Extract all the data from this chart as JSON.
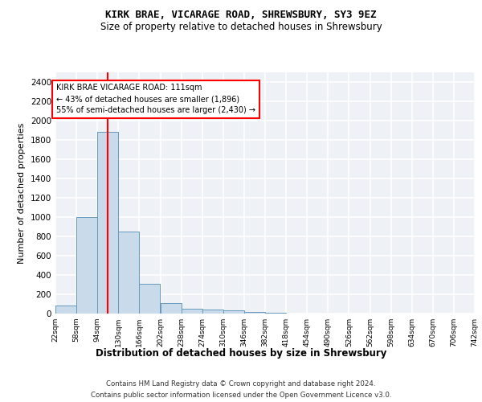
{
  "title": "KIRK BRAE, VICARAGE ROAD, SHREWSBURY, SY3 9EZ",
  "subtitle": "Size of property relative to detached houses in Shrewsbury",
  "xlabel": "Distribution of detached houses by size in Shrewsbury",
  "ylabel": "Number of detached properties",
  "bin_edges": [
    22,
    58,
    94,
    130,
    166,
    202,
    238,
    274,
    310,
    346,
    382,
    418,
    454,
    490,
    526,
    562,
    598,
    634,
    670,
    706,
    742
  ],
  "bar_heights": [
    80,
    1000,
    1880,
    850,
    310,
    110,
    50,
    40,
    30,
    15,
    10,
    0,
    0,
    0,
    0,
    0,
    0,
    0,
    0,
    0
  ],
  "bar_color": "#c9daea",
  "bar_edge_color": "#6699bb",
  "red_line_x": 111,
  "ylim": [
    0,
    2500
  ],
  "yticks": [
    0,
    200,
    400,
    600,
    800,
    1000,
    1200,
    1400,
    1600,
    1800,
    2000,
    2200,
    2400
  ],
  "annotation_title": "KIRK BRAE VICARAGE ROAD: 111sqm",
  "annotation_line1": "← 43% of detached houses are smaller (1,896)",
  "annotation_line2": "55% of semi-detached houses are larger (2,430) →",
  "bg_color": "#eef2f7",
  "grid_color": "#ffffff",
  "footnote1": "Contains HM Land Registry data © Crown copyright and database right 2024.",
  "footnote2": "Contains public sector information licensed under the Open Government Licence v3.0."
}
